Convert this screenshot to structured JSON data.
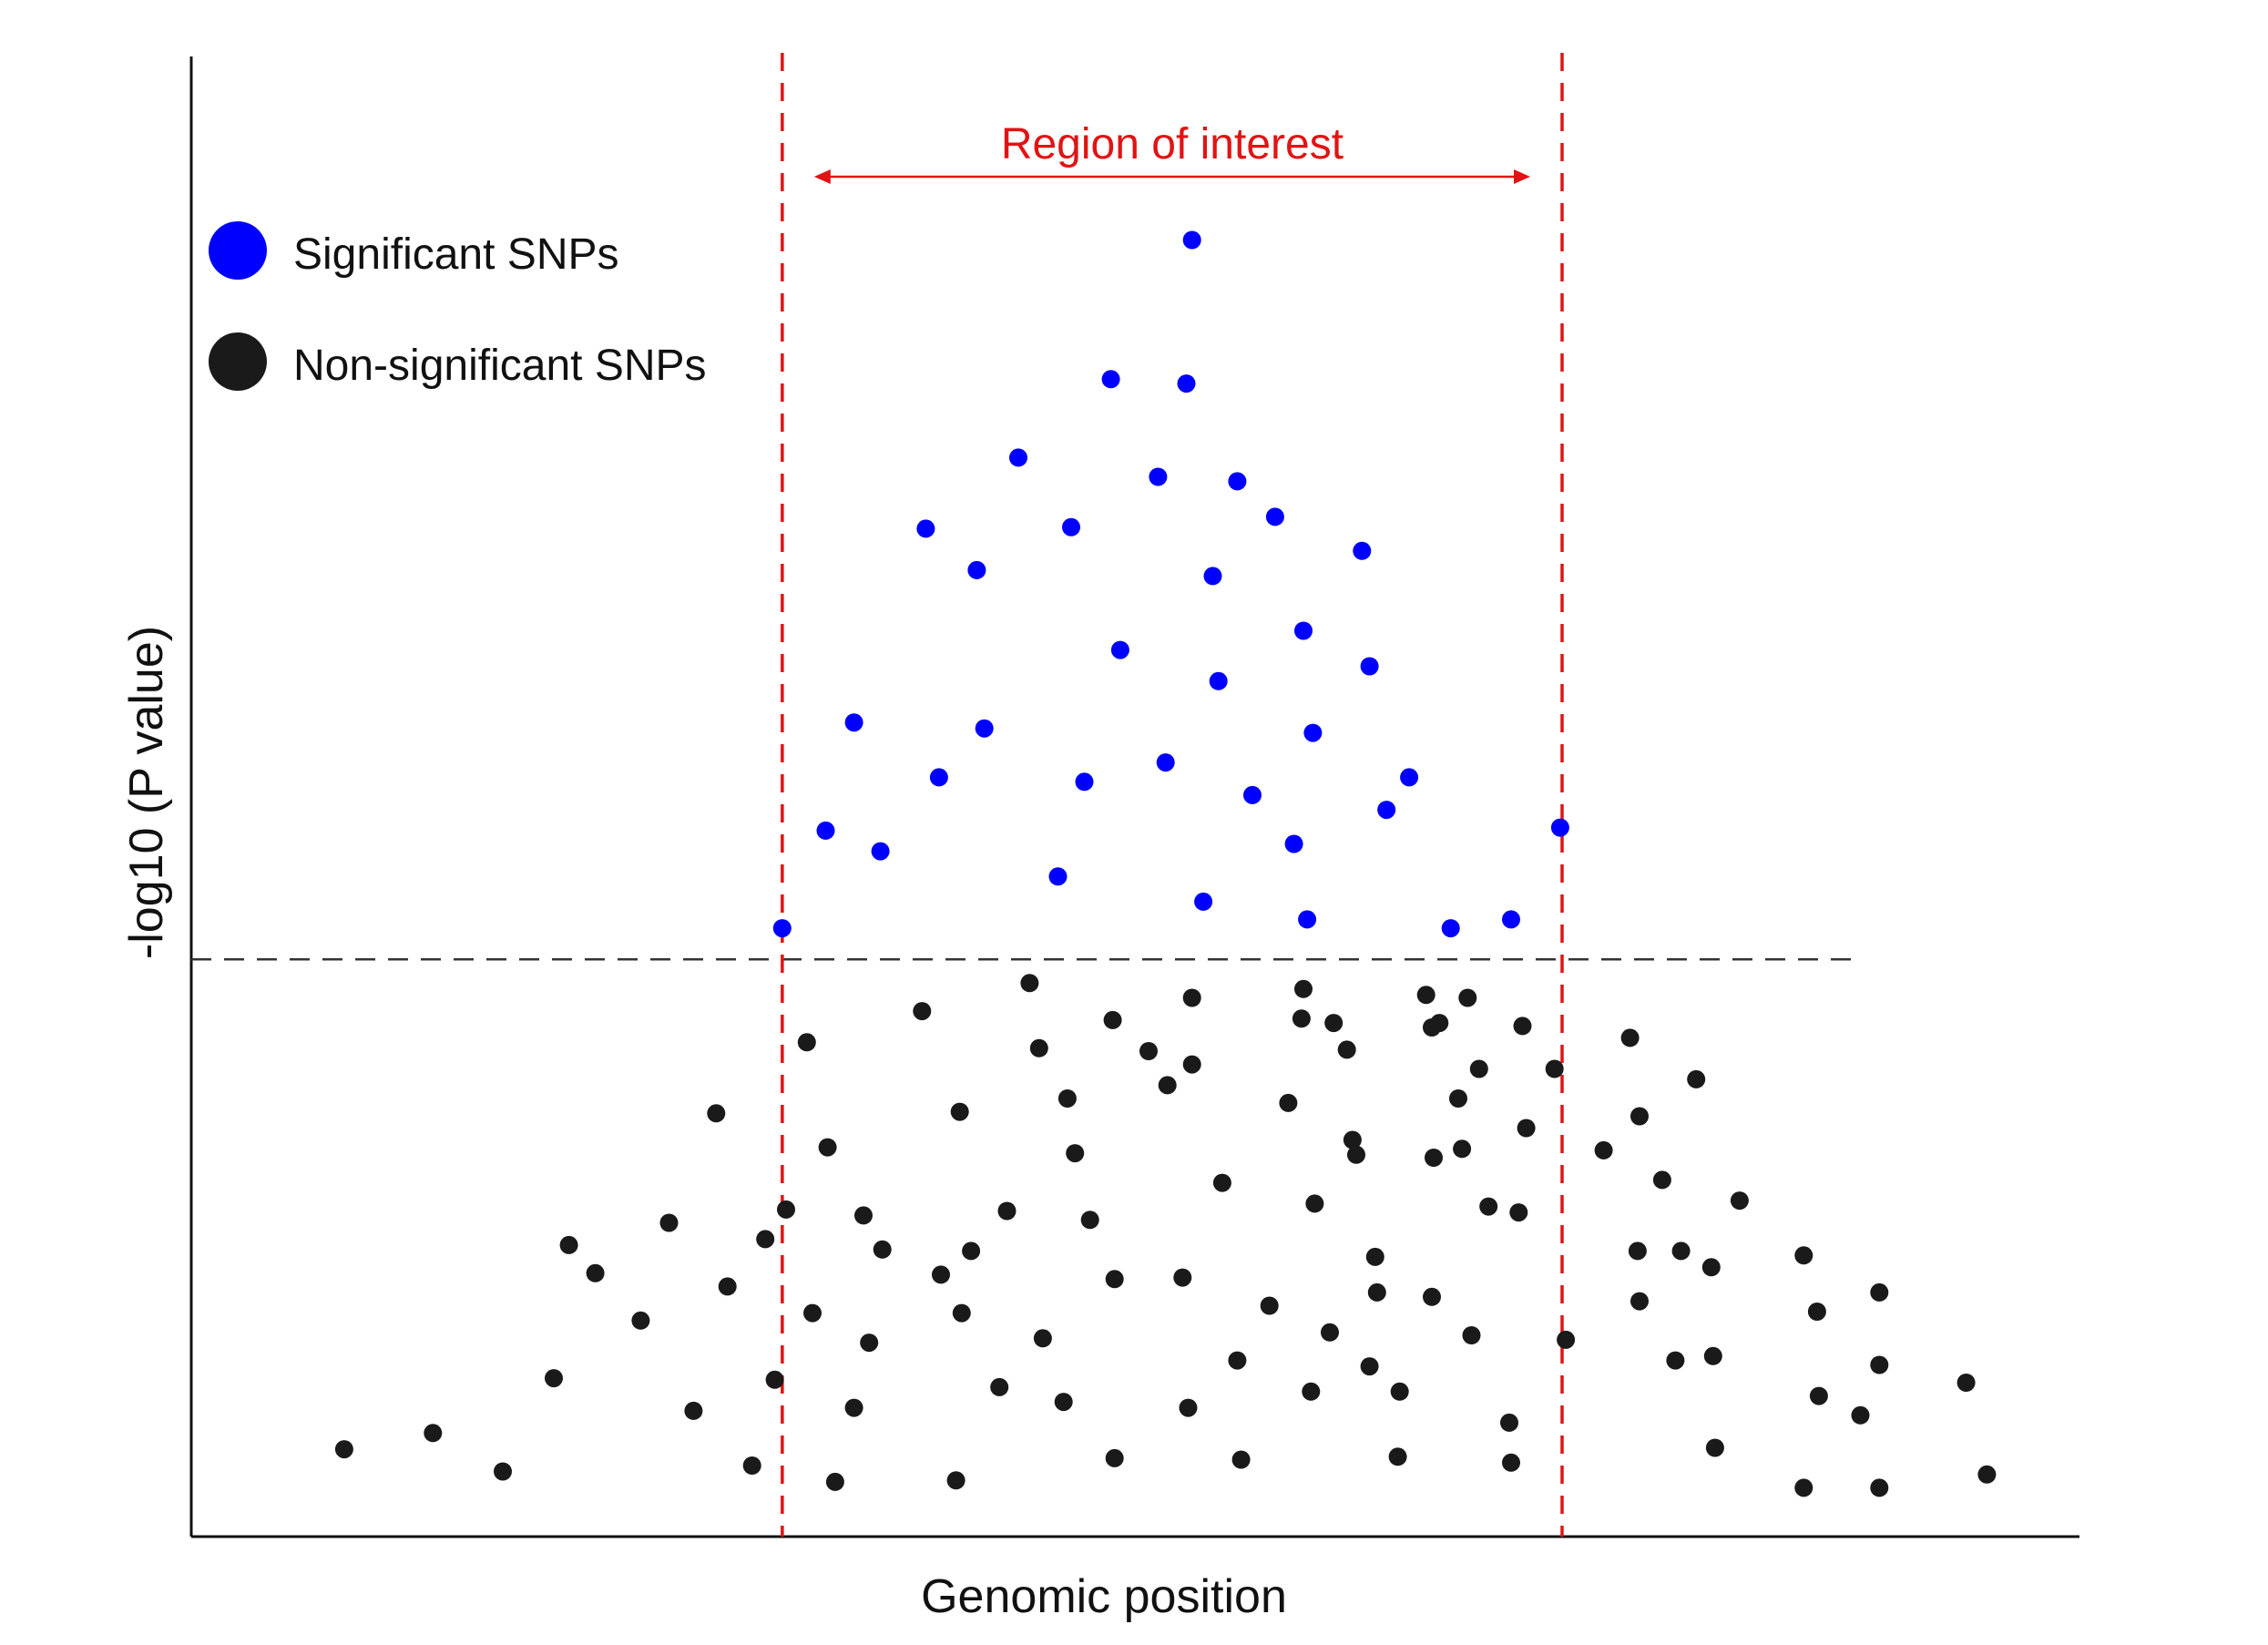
{
  "chart_data": {
    "type": "scatter",
    "title": "",
    "xlabel": "Genomic position",
    "ylabel": "-log10 (P value)",
    "xlim": [
      0,
      100
    ],
    "ylim": [
      0,
      100
    ],
    "show_ticks": false,
    "grid": false,
    "legend": {
      "placement": "top-left",
      "entries": [
        {
          "label": "Significant SNPs",
          "color": "#0000ff"
        },
        {
          "label": "Non-significant SNPs",
          "color": "#1a1a1a"
        }
      ]
    },
    "significance_threshold": 39,
    "region_of_interest": {
      "label": "Region of interest",
      "start": 31.3,
      "end": 72.6,
      "color": "#e01414"
    },
    "series": [
      {
        "name": "Significant SNPs",
        "color": "#0000ff",
        "points": [
          [
            53.0,
            87.6
          ],
          [
            48.7,
            78.2
          ],
          [
            52.7,
            77.9
          ],
          [
            43.8,
            72.9
          ],
          [
            51.2,
            71.6
          ],
          [
            55.4,
            71.3
          ],
          [
            57.4,
            68.9
          ],
          [
            38.9,
            68.1
          ],
          [
            46.6,
            68.2
          ],
          [
            41.6,
            65.3
          ],
          [
            54.1,
            64.9
          ],
          [
            62.0,
            66.6
          ],
          [
            58.9,
            61.2
          ],
          [
            49.2,
            59.9
          ],
          [
            62.4,
            58.8
          ],
          [
            54.4,
            57.8
          ],
          [
            35.1,
            55.0
          ],
          [
            42.0,
            54.6
          ],
          [
            59.4,
            54.3
          ],
          [
            51.6,
            52.3
          ],
          [
            39.6,
            51.3
          ],
          [
            47.3,
            51.0
          ],
          [
            64.5,
            51.3
          ],
          [
            56.2,
            50.1
          ],
          [
            63.3,
            49.1
          ],
          [
            33.6,
            47.7
          ],
          [
            58.4,
            46.8
          ],
          [
            72.5,
            47.9
          ],
          [
            36.5,
            46.3
          ],
          [
            45.9,
            44.6
          ],
          [
            53.6,
            42.9
          ],
          [
            59.1,
            41.7
          ],
          [
            69.9,
            41.7
          ],
          [
            66.7,
            41.1
          ],
          [
            31.3,
            41.1
          ]
        ]
      },
      {
        "name": "Non-significant SNPs",
        "color": "#1a1a1a",
        "points": [
          [
            8.1,
            5.9
          ],
          [
            12.8,
            7.0
          ],
          [
            16.5,
            4.4
          ],
          [
            19.2,
            10.7
          ],
          [
            20.0,
            19.7
          ],
          [
            21.4,
            17.8
          ],
          [
            23.8,
            14.6
          ],
          [
            25.3,
            21.2
          ],
          [
            26.6,
            8.5
          ],
          [
            27.8,
            28.6
          ],
          [
            28.4,
            16.9
          ],
          [
            29.7,
            4.8
          ],
          [
            30.4,
            20.1
          ],
          [
            30.9,
            10.6
          ],
          [
            31.5,
            22.1
          ],
          [
            32.6,
            33.4
          ],
          [
            32.9,
            15.1
          ],
          [
            33.7,
            26.3
          ],
          [
            34.1,
            3.7
          ],
          [
            35.1,
            8.7
          ],
          [
            35.6,
            21.7
          ],
          [
            35.9,
            13.1
          ],
          [
            36.6,
            19.4
          ],
          [
            38.7,
            35.5
          ],
          [
            39.7,
            17.7
          ],
          [
            40.5,
            3.8
          ],
          [
            40.7,
            28.7
          ],
          [
            40.8,
            15.1
          ],
          [
            41.3,
            19.3
          ],
          [
            42.8,
            10.1
          ],
          [
            43.2,
            22.0
          ],
          [
            44.4,
            37.4
          ],
          [
            44.9,
            33.0
          ],
          [
            45.1,
            13.4
          ],
          [
            46.2,
            9.1
          ],
          [
            46.4,
            29.6
          ],
          [
            46.8,
            25.9
          ],
          [
            47.6,
            21.4
          ],
          [
            48.8,
            34.9
          ],
          [
            48.9,
            17.4
          ],
          [
            48.9,
            5.3
          ],
          [
            50.7,
            32.8
          ],
          [
            51.7,
            30.5
          ],
          [
            52.5,
            17.5
          ],
          [
            52.8,
            8.7
          ],
          [
            53.0,
            36.4
          ],
          [
            53.0,
            31.9
          ],
          [
            54.6,
            23.9
          ],
          [
            55.4,
            11.9
          ],
          [
            55.6,
            5.2
          ],
          [
            57.1,
            15.6
          ],
          [
            58.1,
            29.3
          ],
          [
            58.8,
            35.0
          ],
          [
            58.9,
            37.0
          ],
          [
            59.3,
            9.8
          ],
          [
            59.5,
            22.5
          ],
          [
            60.3,
            13.8
          ],
          [
            60.5,
            34.7
          ],
          [
            61.2,
            32.9
          ],
          [
            61.5,
            26.8
          ],
          [
            61.7,
            25.8
          ],
          [
            62.4,
            11.5
          ],
          [
            62.7,
            18.9
          ],
          [
            62.8,
            16.5
          ],
          [
            63.9,
            5.4
          ],
          [
            64.0,
            9.8
          ],
          [
            65.4,
            36.6
          ],
          [
            65.7,
            34.4
          ],
          [
            65.7,
            16.2
          ],
          [
            65.8,
            25.6
          ],
          [
            66.1,
            34.7
          ],
          [
            67.1,
            29.6
          ],
          [
            67.3,
            26.2
          ],
          [
            67.6,
            36.4
          ],
          [
            67.8,
            13.6
          ],
          [
            68.2,
            31.6
          ],
          [
            68.7,
            22.3
          ],
          [
            69.8,
            7.7
          ],
          [
            69.9,
            5.0
          ],
          [
            70.3,
            21.9
          ],
          [
            70.5,
            34.5
          ],
          [
            70.7,
            27.6
          ],
          [
            72.2,
            31.6
          ],
          [
            72.8,
            13.3
          ],
          [
            74.8,
            26.1
          ],
          [
            76.2,
            33.7
          ],
          [
            76.6,
            19.3
          ],
          [
            76.7,
            28.4
          ],
          [
            76.7,
            15.9
          ],
          [
            77.9,
            24.1
          ],
          [
            78.6,
            11.9
          ],
          [
            78.9,
            19.3
          ],
          [
            79.7,
            30.9
          ],
          [
            80.5,
            18.2
          ],
          [
            80.6,
            12.2
          ],
          [
            80.7,
            6.0
          ],
          [
            82.0,
            22.7
          ],
          [
            85.4,
            19.0
          ],
          [
            85.4,
            3.3
          ],
          [
            86.1,
            15.2
          ],
          [
            86.2,
            9.5
          ],
          [
            88.4,
            8.2
          ],
          [
            89.4,
            16.5
          ],
          [
            89.4,
            11.6
          ],
          [
            89.4,
            3.3
          ],
          [
            94.0,
            10.4
          ],
          [
            95.1,
            4.2
          ]
        ]
      }
    ]
  }
}
